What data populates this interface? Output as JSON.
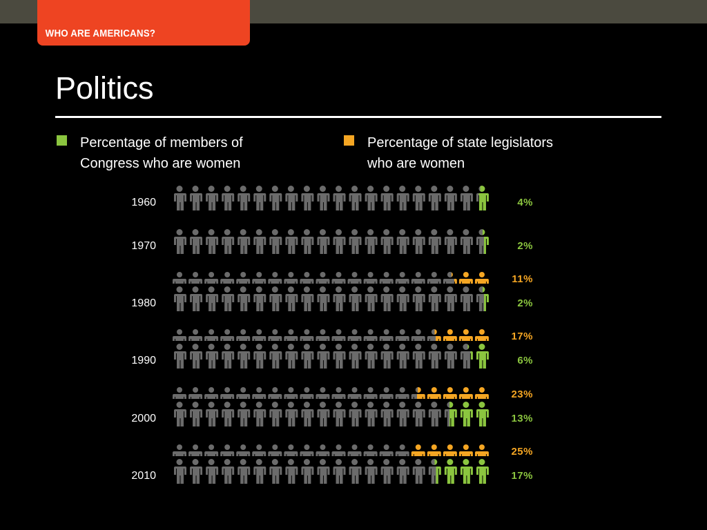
{
  "header": {
    "tab_label": "WHO ARE AMERICANS?",
    "title": "Politics"
  },
  "colors": {
    "congress": "#8bc53f",
    "state": "#f5a623",
    "figure_gray": "#6b6b6b",
    "tab_red": "#ee4422"
  },
  "legend": [
    {
      "key": "congress",
      "text": "Percentage of members of\nCongress who are women"
    },
    {
      "key": "state",
      "text": "Percentage of state legislators\nwho are women"
    }
  ],
  "chart_data": {
    "type": "pictograph",
    "icons_per_row": 20,
    "categories": [
      "1960",
      "1970",
      "1980",
      "1990",
      "2000",
      "2010"
    ],
    "series": [
      {
        "key": "state",
        "name": "Percentage of state legislators who are women",
        "values": [
          null,
          null,
          11,
          17,
          23,
          25
        ],
        "labels": [
          "",
          "",
          "11%",
          "17%",
          "23%",
          "25%"
        ]
      },
      {
        "key": "congress",
        "name": "Percentage of members of Congress who are women",
        "values": [
          4,
          2,
          2,
          6,
          13,
          17
        ],
        "labels": [
          "4%",
          "2%",
          "2%",
          "6%",
          "13%",
          "17%"
        ]
      }
    ]
  }
}
